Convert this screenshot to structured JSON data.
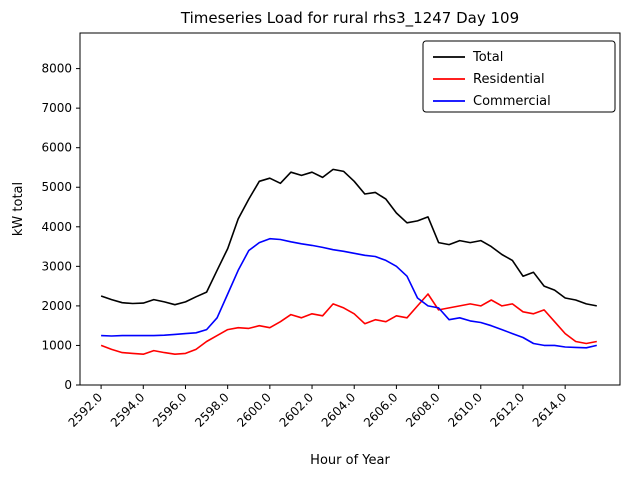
{
  "figure": {
    "title": "Timeseries Load for rural rhs3_1247  Day 109"
  },
  "chart_data": {
    "type": "line",
    "title": "Timeseries Load for rural rhs3_1247  Day 109",
    "xlabel": "Hour of Year",
    "ylabel": "kW total",
    "xlim": [
      2591.0,
      2616.6
    ],
    "ylim": [
      0,
      8900
    ],
    "grid": false,
    "legend_position": "upper right",
    "x_ticks": [
      2592,
      2594,
      2596,
      2598,
      2600,
      2602,
      2604,
      2606,
      2608,
      2610,
      2612,
      2614
    ],
    "x_tick_labels": [
      "2592.0",
      "2594.0",
      "2596.0",
      "2598.0",
      "2600.0",
      "2602.0",
      "2604.0",
      "2606.0",
      "2608.0",
      "2610.0",
      "2612.0",
      "2614.0"
    ],
    "y_ticks": [
      0,
      1000,
      2000,
      3000,
      4000,
      5000,
      6000,
      7000,
      8000
    ],
    "y_tick_labels": [
      "0",
      "1000",
      "2000",
      "3000",
      "4000",
      "5000",
      "6000",
      "7000",
      "8000"
    ],
    "x": [
      2592.0,
      2592.5,
      2593.0,
      2593.5,
      2594.0,
      2594.5,
      2595.0,
      2595.5,
      2596.0,
      2596.5,
      2597.0,
      2597.5,
      2598.0,
      2598.5,
      2599.0,
      2599.5,
      2600.0,
      2600.5,
      2601.0,
      2601.5,
      2602.0,
      2602.5,
      2603.0,
      2603.5,
      2604.0,
      2604.5,
      2605.0,
      2605.5,
      2606.0,
      2606.5,
      2607.0,
      2607.5,
      2608.0,
      2608.5,
      2609.0,
      2609.5,
      2610.0,
      2610.5,
      2611.0,
      2611.5,
      2612.0,
      2612.5,
      2613.0,
      2613.5,
      2614.0,
      2614.5,
      2615.0,
      2615.5
    ],
    "series": [
      {
        "name": "Total",
        "color": "#000000",
        "values": [
          2250,
          2160,
          2080,
          2060,
          2070,
          2160,
          2100,
          2030,
          2100,
          2230,
          2350,
          2900,
          3450,
          4200,
          4700,
          5150,
          5230,
          5100,
          5380,
          5300,
          5380,
          5250,
          5450,
          5400,
          5150,
          4830,
          4870,
          4700,
          4350,
          4100,
          4150,
          4250,
          3600,
          3550,
          3650,
          3600,
          3650,
          3500,
          3300,
          3150,
          2750,
          2850,
          2500,
          2400,
          2200,
          2150,
          2050,
          2000
        ]
      },
      {
        "name": "Residential",
        "color": "#ff0000",
        "values": [
          1000,
          900,
          820,
          800,
          780,
          870,
          820,
          780,
          800,
          900,
          1100,
          1250,
          1400,
          1450,
          1430,
          1500,
          1450,
          1600,
          1780,
          1700,
          1800,
          1750,
          2050,
          1950,
          1800,
          1550,
          1650,
          1600,
          1750,
          1700,
          2000,
          2300,
          1900,
          1950,
          2000,
          2050,
          2000,
          2150,
          2000,
          2050,
          1850,
          1800,
          1900,
          1600,
          1300,
          1100,
          1050,
          1100
        ]
      },
      {
        "name": "Commercial",
        "color": "#0000ff",
        "values": [
          1250,
          1240,
          1250,
          1250,
          1250,
          1250,
          1260,
          1280,
          1300,
          1320,
          1400,
          1700,
          2300,
          2900,
          3400,
          3600,
          3700,
          3680,
          3620,
          3570,
          3530,
          3480,
          3420,
          3380,
          3330,
          3280,
          3250,
          3150,
          3000,
          2750,
          2200,
          2000,
          1950,
          1650,
          1700,
          1620,
          1580,
          1500,
          1400,
          1300,
          1200,
          1050,
          1000,
          1000,
          960,
          950,
          940,
          1000
        ]
      }
    ]
  }
}
